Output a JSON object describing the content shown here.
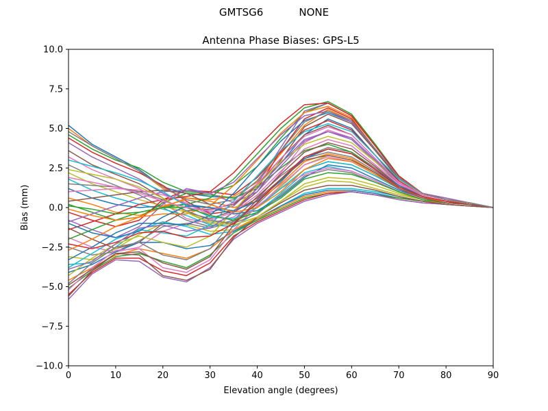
{
  "figure": {
    "suptitle_left": "GMTSG6",
    "suptitle_right": "NONE"
  },
  "chart_data": {
    "type": "line",
    "title": "Antenna Phase Biases: GPS-L5",
    "xlabel": "Elevation angle (degrees)",
    "ylabel": "Bias (mm)",
    "xlim": [
      0,
      90
    ],
    "ylim": [
      -10,
      10
    ],
    "xticks": [
      0,
      10,
      20,
      30,
      40,
      50,
      60,
      70,
      80,
      90
    ],
    "yticks": [
      -10.0,
      -7.5,
      -5.0,
      -2.5,
      0.0,
      2.5,
      5.0,
      7.5,
      10.0
    ],
    "ytick_labels": [
      "−10.0",
      "−7.5",
      "−5.0",
      "−2.5",
      "0.0",
      "2.5",
      "5.0",
      "7.5",
      "10.0"
    ],
    "grid": false,
    "legend": "none",
    "colors": [
      "#1f77b4",
      "#ff7f0e",
      "#2ca02c",
      "#d62728",
      "#9467bd",
      "#8c564b",
      "#e377c2",
      "#7f7f7f",
      "#bcbd22",
      "#17becf"
    ],
    "x": [
      0,
      5,
      10,
      15,
      20,
      25,
      30,
      35,
      40,
      45,
      50,
      55,
      60,
      65,
      70,
      75,
      80,
      85,
      90
    ],
    "series": [
      {
        "values": [
          5.2,
          4.0,
          3.2,
          2.4,
          1.3,
          0.9,
          0.7,
          0.6,
          1.2,
          2.8,
          4.6,
          5.6,
          5.0,
          3.3,
          1.6,
          0.8,
          0.5,
          0.3,
          0.0
        ]
      },
      {
        "values": [
          5.0,
          3.9,
          3.1,
          2.3,
          1.2,
          0.6,
          0.5,
          0.7,
          1.6,
          3.4,
          5.2,
          6.2,
          5.5,
          3.6,
          1.8,
          0.9,
          0.6,
          0.3,
          0.0
        ]
      },
      {
        "values": [
          4.6,
          3.7,
          3.0,
          2.5,
          1.6,
          1.0,
          0.9,
          1.4,
          2.6,
          4.4,
          6.0,
          6.6,
          5.8,
          3.9,
          2.0,
          0.9,
          0.5,
          0.3,
          0.0
        ]
      },
      {
        "values": [
          4.4,
          3.5,
          2.8,
          2.2,
          1.4,
          0.4,
          -0.4,
          -0.2,
          1.2,
          3.6,
          5.6,
          6.3,
          5.6,
          3.7,
          1.9,
          0.9,
          0.5,
          0.3,
          0.0
        ]
      },
      {
        "values": [
          4.1,
          3.2,
          2.5,
          1.8,
          0.9,
          0.2,
          -0.3,
          0.1,
          1.5,
          3.8,
          6.1,
          6.6,
          5.8,
          3.9,
          1.9,
          0.9,
          0.6,
          0.3,
          0.0
        ]
      },
      {
        "values": [
          3.6,
          2.7,
          2.1,
          1.5,
          0.6,
          -0.3,
          -0.7,
          -0.2,
          1.0,
          3.0,
          5.1,
          5.9,
          5.3,
          3.6,
          1.8,
          0.9,
          0.5,
          0.3,
          0.0
        ]
      },
      {
        "values": [
          3.2,
          2.4,
          1.8,
          1.2,
          0.3,
          -0.7,
          -1.0,
          -0.6,
          0.5,
          2.2,
          4.1,
          4.9,
          4.4,
          3.0,
          1.6,
          0.8,
          0.5,
          0.3,
          0.0
        ]
      },
      {
        "values": [
          2.7,
          2.0,
          1.4,
          0.8,
          0.0,
          -0.8,
          -1.2,
          -0.8,
          0.2,
          1.6,
          3.2,
          3.8,
          3.5,
          2.5,
          1.4,
          0.8,
          0.5,
          0.3,
          0.0
        ]
      },
      {
        "values": [
          2.2,
          1.5,
          1.0,
          0.5,
          0.1,
          -0.3,
          -0.9,
          -1.0,
          0.0,
          1.3,
          2.7,
          3.3,
          3.0,
          2.2,
          1.3,
          0.7,
          0.4,
          0.3,
          0.0
        ]
      },
      {
        "values": [
          1.8,
          1.1,
          0.6,
          0.2,
          -0.1,
          -0.5,
          -1.1,
          -1.2,
          -0.3,
          0.9,
          2.2,
          2.6,
          2.3,
          1.7,
          1.0,
          0.6,
          0.4,
          0.2,
          0.0
        ]
      },
      {
        "values": [
          1.2,
          0.6,
          0.2,
          0.0,
          0.1,
          0.2,
          0.0,
          -0.4,
          -0.2,
          0.7,
          1.9,
          2.7,
          2.5,
          1.8,
          1.1,
          0.6,
          0.4,
          0.2,
          0.0
        ]
      },
      {
        "values": [
          0.6,
          0.2,
          -0.3,
          -0.5,
          0.0,
          0.6,
          0.4,
          0.0,
          0.4,
          1.5,
          2.9,
          3.4,
          3.1,
          2.2,
          1.3,
          0.7,
          0.4,
          0.2,
          0.0
        ]
      },
      {
        "values": [
          0.2,
          -0.3,
          -0.8,
          -0.6,
          0.3,
          0.9,
          0.8,
          0.6,
          1.3,
          2.5,
          3.6,
          4.0,
          3.5,
          2.4,
          1.3,
          0.7,
          0.4,
          0.2,
          0.0
        ]
      },
      {
        "values": [
          -0.3,
          -0.8,
          -1.2,
          -0.8,
          0.5,
          1.1,
          1.0,
          0.8,
          1.9,
          3.5,
          4.9,
          5.5,
          4.9,
          3.3,
          1.7,
          0.8,
          0.5,
          0.3,
          0.0
        ]
      },
      {
        "values": [
          -0.8,
          -1.4,
          -1.9,
          -1.2,
          0.2,
          1.2,
          0.9,
          0.3,
          1.0,
          2.6,
          4.2,
          4.8,
          4.3,
          2.9,
          1.5,
          0.8,
          0.5,
          0.3,
          0.0
        ]
      },
      {
        "values": [
          -1.3,
          -2.0,
          -2.6,
          -2.2,
          -1.0,
          -0.2,
          -0.1,
          0.2,
          1.4,
          3.1,
          4.6,
          5.2,
          4.6,
          3.1,
          1.6,
          0.8,
          0.5,
          0.3,
          0.0
        ]
      },
      {
        "values": [
          -1.9,
          -2.5,
          -2.8,
          -2.5,
          -1.5,
          -1.0,
          -0.8,
          -0.3,
          0.8,
          2.3,
          3.7,
          4.3,
          3.9,
          2.7,
          1.5,
          0.8,
          0.5,
          0.3,
          0.0
        ]
      },
      {
        "values": [
          -2.5,
          -3.0,
          -2.8,
          -2.1,
          -1.2,
          -1.0,
          -1.3,
          -0.9,
          0.0,
          1.2,
          2.4,
          2.9,
          2.7,
          2.0,
          1.2,
          0.7,
          0.4,
          0.2,
          0.0
        ]
      },
      {
        "values": [
          -3.1,
          -3.3,
          -2.6,
          -1.7,
          -1.0,
          -1.1,
          -1.5,
          -1.4,
          -0.6,
          0.4,
          1.3,
          1.7,
          1.6,
          1.2,
          0.8,
          0.5,
          0.3,
          0.2,
          0.0
        ]
      },
      {
        "values": [
          -3.6,
          -3.5,
          -2.5,
          -1.4,
          -0.9,
          -1.2,
          -1.7,
          -1.5,
          -0.8,
          0.1,
          0.9,
          1.2,
          1.2,
          1.0,
          0.7,
          0.4,
          0.3,
          0.2,
          0.0
        ]
      },
      {
        "values": [
          -4.1,
          -3.6,
          -2.8,
          -2.2,
          -2.2,
          -2.6,
          -2.4,
          -1.5,
          -0.7,
          0.1,
          0.8,
          1.1,
          1.1,
          0.9,
          0.6,
          0.4,
          0.3,
          0.2,
          0.0
        ]
      },
      {
        "values": [
          -4.6,
          -3.8,
          -3.0,
          -2.6,
          -2.9,
          -3.2,
          -2.6,
          -1.4,
          -0.7,
          0.0,
          0.7,
          1.0,
          1.0,
          0.8,
          0.6,
          0.4,
          0.3,
          0.2,
          0.0
        ]
      },
      {
        "values": [
          -5.1,
          -4.0,
          -3.1,
          -2.9,
          -3.4,
          -3.8,
          -3.0,
          -1.6,
          -0.8,
          -0.1,
          0.6,
          0.9,
          1.0,
          0.8,
          0.6,
          0.4,
          0.2,
          0.1,
          0.0
        ]
      },
      {
        "values": [
          -5.5,
          -4.1,
          -3.2,
          -3.2,
          -4.0,
          -4.3,
          -3.5,
          -1.8,
          -0.9,
          -0.2,
          0.5,
          0.9,
          1.0,
          0.8,
          0.5,
          0.3,
          0.2,
          0.1,
          0.0
        ]
      },
      {
        "values": [
          -5.8,
          -4.2,
          -3.3,
          -3.4,
          -4.4,
          -4.7,
          -3.8,
          -2.0,
          -1.0,
          -0.3,
          0.4,
          0.8,
          1.0,
          0.8,
          0.5,
          0.3,
          0.2,
          0.1,
          0.0
        ]
      },
      {
        "values": [
          -5.6,
          -4.0,
          -2.9,
          -3.0,
          -4.3,
          -4.6,
          -3.9,
          -1.9,
          -0.6,
          0.3,
          1.1,
          1.4,
          1.4,
          1.1,
          0.7,
          0.4,
          0.2,
          0.1,
          0.0
        ]
      },
      {
        "values": [
          -5.2,
          -3.8,
          -2.7,
          -2.6,
          -3.8,
          -4.1,
          -3.3,
          -1.4,
          0.1,
          1.2,
          2.1,
          2.5,
          2.3,
          1.7,
          1.0,
          0.6,
          0.3,
          0.2,
          0.0
        ]
      },
      {
        "values": [
          -4.8,
          -3.5,
          -2.5,
          -2.2,
          -3.0,
          -3.3,
          -2.6,
          -0.8,
          0.7,
          2.0,
          3.1,
          3.5,
          3.2,
          2.3,
          1.3,
          0.7,
          0.4,
          0.2,
          0.0
        ]
      },
      {
        "values": [
          -4.3,
          -3.2,
          -2.3,
          -1.8,
          -2.2,
          -2.5,
          -1.8,
          -0.2,
          1.4,
          2.9,
          4.0,
          4.5,
          4.1,
          2.9,
          1.6,
          0.8,
          0.5,
          0.3,
          0.0
        ]
      },
      {
        "values": [
          -3.8,
          -2.9,
          -2.0,
          -1.4,
          -1.6,
          -1.8,
          -1.1,
          0.4,
          2.0,
          3.6,
          4.8,
          5.3,
          4.8,
          3.3,
          1.8,
          0.9,
          0.5,
          0.3,
          0.0
        ]
      },
      {
        "values": [
          -3.3,
          -2.5,
          -1.6,
          -1.0,
          -1.0,
          -1.1,
          -0.5,
          0.9,
          2.6,
          4.2,
          5.5,
          6.0,
          5.4,
          3.7,
          1.9,
          0.9,
          0.5,
          0.3,
          0.0
        ]
      },
      {
        "values": [
          -2.7,
          -2.0,
          -1.2,
          -0.6,
          -0.4,
          -0.4,
          0.1,
          1.4,
          3.0,
          4.7,
          6.0,
          6.4,
          5.7,
          3.9,
          2.0,
          0.9,
          0.5,
          0.3,
          0.0
        ]
      },
      {
        "values": [
          -2.0,
          -1.4,
          -0.8,
          -0.3,
          0.0,
          0.2,
          0.6,
          1.8,
          3.4,
          5.0,
          6.3,
          6.7,
          5.9,
          4.0,
          2.0,
          0.9,
          0.5,
          0.3,
          0.0
        ]
      },
      {
        "values": [
          -1.4,
          -0.9,
          -0.4,
          0.2,
          0.5,
          0.7,
          1.0,
          2.2,
          3.8,
          5.3,
          6.5,
          6.6,
          5.8,
          3.9,
          2.0,
          0.9,
          0.5,
          0.3,
          0.0
        ]
      },
      {
        "values": [
          -0.9,
          -0.4,
          0.1,
          0.6,
          1.0,
          1.1,
          0.9,
          1.6,
          3.1,
          4.6,
          5.8,
          6.1,
          5.4,
          3.7,
          1.9,
          0.9,
          0.5,
          0.3,
          0.0
        ]
      },
      {
        "values": [
          0.4,
          0.6,
          0.8,
          1.0,
          1.1,
          0.9,
          0.2,
          -0.3,
          0.6,
          2.1,
          3.5,
          4.1,
          3.7,
          2.6,
          1.4,
          0.7,
          0.4,
          0.2,
          0.0
        ]
      },
      {
        "values": [
          1.0,
          1.1,
          1.2,
          1.1,
          0.8,
          0.3,
          -0.5,
          -0.8,
          0.0,
          1.4,
          2.7,
          3.2,
          2.9,
          2.1,
          1.2,
          0.6,
          0.4,
          0.2,
          0.0
        ]
      },
      {
        "values": [
          1.5,
          1.4,
          1.3,
          1.0,
          0.5,
          -0.2,
          -0.8,
          -1.0,
          -0.4,
          0.8,
          2.0,
          2.4,
          2.2,
          1.6,
          1.0,
          0.5,
          0.3,
          0.2,
          0.0
        ]
      },
      {
        "values": [
          2.4,
          2.1,
          1.8,
          1.3,
          0.6,
          -0.3,
          -1.0,
          -1.1,
          -0.6,
          0.4,
          1.5,
          1.9,
          1.8,
          1.4,
          0.9,
          0.5,
          0.3,
          0.2,
          0.0
        ]
      },
      {
        "values": [
          3.0,
          2.6,
          2.2,
          1.7,
          1.0,
          0.1,
          -0.6,
          -0.7,
          0.0,
          1.2,
          2.4,
          2.9,
          2.7,
          2.0,
          1.2,
          0.6,
          0.4,
          0.2,
          0.0
        ]
      },
      {
        "values": [
          -1.0,
          -1.6,
          -1.9,
          -1.5,
          -0.6,
          0.1,
          0.0,
          -0.2,
          0.4,
          1.7,
          3.1,
          3.7,
          3.4,
          2.4,
          1.4,
          0.7,
          0.4,
          0.2,
          0.0
        ]
      },
      {
        "values": [
          -0.1,
          -0.5,
          -0.8,
          -0.6,
          0.1,
          0.5,
          0.2,
          -0.3,
          0.0,
          1.0,
          2.4,
          3.1,
          2.9,
          2.1,
          1.2,
          0.6,
          0.4,
          0.2,
          0.0
        ]
      },
      {
        "values": [
          0.1,
          -0.1,
          -0.4,
          -0.3,
          0.0,
          0.0,
          -0.5,
          -0.8,
          -0.3,
          0.6,
          1.8,
          2.2,
          2.1,
          1.6,
          1.0,
          0.5,
          0.3,
          0.2,
          0.0
        ]
      },
      {
        "values": [
          -2.3,
          -2.6,
          -2.2,
          -1.6,
          -1.5,
          -1.9,
          -1.8,
          -1.0,
          0.3,
          1.8,
          3.2,
          3.7,
          3.4,
          2.4,
          1.3,
          0.7,
          0.4,
          0.2,
          0.0
        ]
      },
      {
        "values": [
          -3.9,
          -3.4,
          -2.3,
          -1.3,
          -1.1,
          -1.5,
          -1.3,
          -0.3,
          1.2,
          2.8,
          4.3,
          4.8,
          4.4,
          3.0,
          1.6,
          0.8,
          0.5,
          0.3,
          0.0
        ]
      },
      {
        "values": [
          -4.9,
          -3.9,
          -2.9,
          -2.8,
          -3.5,
          -3.9,
          -3.1,
          -1.1,
          0.5,
          1.8,
          3.0,
          3.3,
          3.0,
          2.2,
          1.2,
          0.6,
          0.3,
          0.2,
          0.0
        ]
      },
      {
        "values": [
          1.9,
          1.6,
          1.3,
          0.9,
          0.4,
          0.0,
          -0.2,
          0.3,
          1.5,
          3.1,
          4.5,
          5.1,
          4.6,
          3.1,
          1.6,
          0.8,
          0.5,
          0.3,
          0.0
        ]
      },
      {
        "values": [
          4.8,
          3.9,
          3.1,
          2.3,
          1.3,
          0.5,
          0.2,
          0.5,
          1.7,
          3.6,
          5.4,
          6.1,
          5.5,
          3.7,
          1.9,
          0.9,
          0.5,
          0.3,
          0.0
        ]
      }
    ]
  }
}
